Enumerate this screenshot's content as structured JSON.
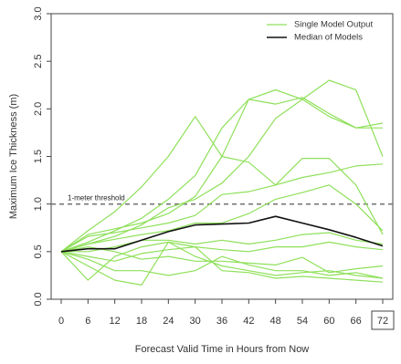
{
  "chart_data": {
    "type": "line",
    "xlabel": "Forecast Valid Time in Hours from Now",
    "ylabel": "Maximum Ice Thickness (m)",
    "x": [
      0,
      6,
      12,
      18,
      24,
      30,
      36,
      42,
      48,
      54,
      60,
      66,
      72
    ],
    "x_tick_labels": [
      "0",
      "6",
      "12",
      "18",
      "24",
      "30",
      "36",
      "42",
      "48",
      "54",
      "60",
      "66",
      "72"
    ],
    "highlighted_x_tick": "72",
    "ylim": [
      0,
      3
    ],
    "y_ticks": [
      0,
      0.5,
      1,
      1.5,
      2,
      2.5,
      3
    ],
    "y_tick_labels": [
      "0.0",
      "0.5",
      "1.0",
      "1.5",
      "2.0",
      "2.5",
      "3.0"
    ],
    "legend": [
      {
        "label": "Single Model Output",
        "color": "#8fe05a"
      },
      {
        "label": "Median of Models",
        "color": "#111111"
      }
    ],
    "legend_position": "top-right",
    "threshold": {
      "value": 1.0,
      "label": "1-meter threshold",
      "style": "dashed",
      "color": "#777777"
    },
    "series": [
      {
        "values": [
          0.5,
          0.68,
          0.74,
          0.8,
          0.9,
          1.08,
          1.5,
          2.1,
          2.05,
          2.12,
          1.95,
          1.8,
          1.85
        ]
      },
      {
        "values": [
          0.5,
          0.72,
          0.92,
          1.18,
          1.5,
          1.92,
          1.5,
          1.44,
          1.2,
          1.48,
          1.48,
          1.2,
          0.68
        ]
      },
      {
        "values": [
          0.5,
          0.6,
          0.72,
          0.85,
          1.05,
          1.3,
          1.8,
          2.1,
          2.2,
          2.1,
          2.3,
          2.2,
          1.5
        ]
      },
      {
        "values": [
          0.5,
          0.58,
          0.66,
          0.78,
          0.96,
          1.05,
          1.22,
          1.5,
          1.9,
          2.1,
          1.92,
          1.8,
          1.8
        ]
      },
      {
        "values": [
          0.5,
          0.66,
          0.7,
          0.75,
          0.8,
          0.88,
          1.1,
          1.13,
          1.2,
          1.28,
          1.33,
          1.4,
          1.42
        ]
      },
      {
        "values": [
          0.5,
          0.58,
          0.63,
          0.68,
          0.72,
          0.8,
          0.8,
          0.9,
          1.05,
          1.12,
          1.2,
          1.0,
          0.72
        ]
      },
      {
        "values": [
          0.5,
          0.5,
          0.55,
          0.62,
          0.62,
          0.58,
          0.62,
          0.58,
          0.62,
          0.68,
          0.7,
          0.62,
          0.58
        ]
      },
      {
        "values": [
          0.5,
          0.45,
          0.4,
          0.48,
          0.52,
          0.55,
          0.52,
          0.5,
          0.55,
          0.55,
          0.6,
          0.55,
          0.52
        ]
      },
      {
        "values": [
          0.5,
          0.55,
          0.5,
          0.42,
          0.45,
          0.4,
          0.4,
          0.38,
          0.36,
          0.44,
          0.28,
          0.32,
          0.35
        ]
      },
      {
        "values": [
          0.5,
          0.42,
          0.3,
          0.3,
          0.25,
          0.3,
          0.45,
          0.36,
          0.3,
          0.3,
          0.25,
          0.28,
          0.22
        ]
      },
      {
        "values": [
          0.5,
          0.35,
          0.2,
          0.15,
          0.6,
          0.45,
          0.35,
          0.3,
          0.25,
          0.28,
          0.3,
          0.25,
          0.22
        ]
      },
      {
        "values": [
          0.5,
          0.2,
          0.45,
          0.55,
          0.6,
          0.55,
          0.3,
          0.28,
          0.22,
          0.24,
          0.22,
          0.2,
          0.18
        ]
      }
    ],
    "median": {
      "values": [
        0.5,
        0.53,
        0.53,
        0.62,
        0.71,
        0.78,
        0.79,
        0.8,
        0.87,
        0.8,
        0.73,
        0.65,
        0.56
      ]
    },
    "grid": false
  }
}
